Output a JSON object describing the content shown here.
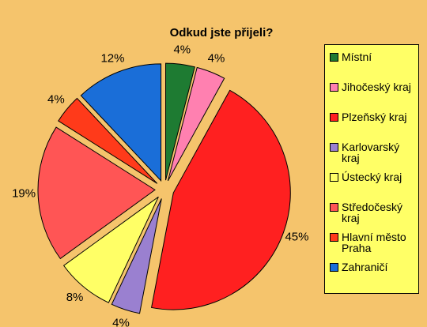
{
  "chart_data": {
    "type": "pie",
    "title": "Odkud jste přijeli?",
    "categories": [
      "Místní",
      "Jihočeský kraj",
      "Plzeňský kraj",
      "Karlovarský kraj",
      "Ústecký kraj",
      "Středočeský kraj",
      "Hlavní město Praha",
      "Zahraničí"
    ],
    "values": [
      4,
      4,
      45,
      4,
      8,
      19,
      4,
      12
    ],
    "value_labels": [
      "4%",
      "4%",
      "45%",
      "4%",
      "8%",
      "19%",
      "4%",
      "12%"
    ],
    "colors": [
      "#1e7b32",
      "#ff80b0",
      "#ff2020",
      "#9a80d0",
      "#ffff66",
      "#ff5555",
      "#ff3a1a",
      "#1a6ed8"
    ],
    "legend": "right"
  }
}
